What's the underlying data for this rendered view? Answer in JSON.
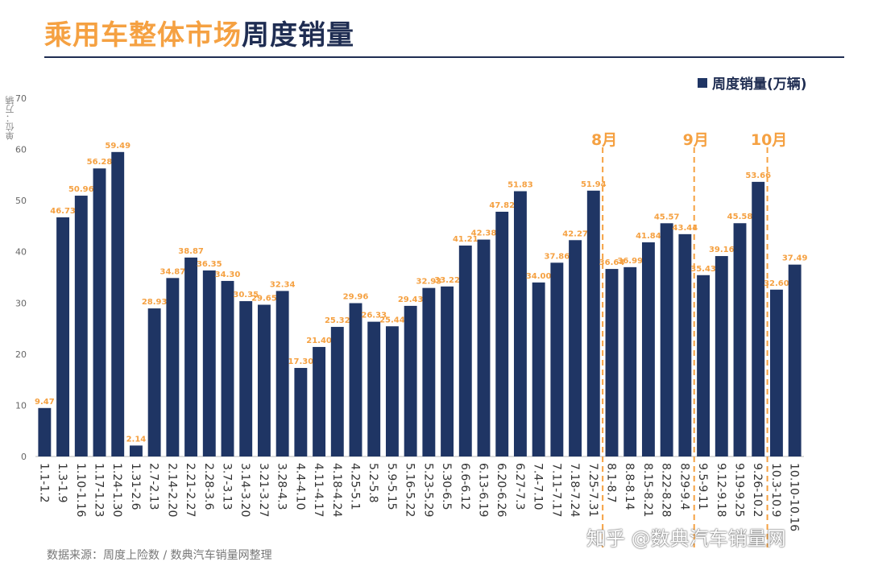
{
  "title_part1": "乘用车整体市场",
  "title_part2": "周度销量",
  "legend_label": "周度销量(万辆)",
  "unit_label": "单位：万辆",
  "source_text": "数据来源：周度上险数 / 数典汽车销量网整理",
  "watermark_text": "知乎 @数典汽车销量网",
  "colors": {
    "bar": "#1f3564",
    "label": "#f5a142",
    "title_accent": "#f5a142",
    "title_dark": "#1f2d52",
    "month_marker": "#f5a142"
  },
  "chart_data": {
    "type": "bar",
    "categories": [
      "1.1-1.2",
      "1.3-1.9",
      "1.10-1.16",
      "1.17-1.23",
      "1.24-1.30",
      "1.31-2.6",
      "2.7-2.13",
      "2.14-2.20",
      "2.21-2.27",
      "2.28-3.6",
      "3.7-3.13",
      "3.14-3.20",
      "3.21-3.27",
      "3.28-4.3",
      "4.4-4.10",
      "4.11-4.17",
      "4.18-4.24",
      "4.25-5.1",
      "5.2-5.8",
      "5.9-5.15",
      "5.16-5.22",
      "5.23-5.29",
      "5.30-6.5",
      "6.6-6.12",
      "6.13-6.19",
      "6.20-6.26",
      "6.27-7.3",
      "7.4-7.10",
      "7.11-7.17",
      "7.18-7.24",
      "7.25-7.31",
      "8.1-8.7",
      "8.8-8.14",
      "8.15-8.21",
      "8.22-8.28",
      "8.29-9.4",
      "9.5-9.11",
      "9.12-9.18",
      "9.19-9.25",
      "9.26-10.2",
      "10.3-10.9",
      "10.10-10.16"
    ],
    "values": [
      9.47,
      46.73,
      50.96,
      56.28,
      59.49,
      2.14,
      28.93,
      34.87,
      38.87,
      36.35,
      34.3,
      30.35,
      29.65,
      32.34,
      17.3,
      21.4,
      25.32,
      29.96,
      26.33,
      25.44,
      29.43,
      32.93,
      33.22,
      41.21,
      42.38,
      47.82,
      51.83,
      34.0,
      37.86,
      42.27,
      51.94,
      36.64,
      36.99,
      41.84,
      45.57,
      43.44,
      35.43,
      39.16,
      45.58,
      53.66,
      32.6,
      37.49
    ],
    "value_labels": [
      "9.47",
      "46.73",
      "50.96",
      "56.28",
      "59.49",
      "2.14",
      "28.93",
      "34.87",
      "38.87",
      "36.35",
      "34.30",
      "30.35",
      "29.65",
      "32.34",
      "17.30",
      "21.40",
      "25.32",
      "29.96",
      "26.33",
      "25.44",
      "29.43",
      "32.93",
      "33.22",
      "41.21",
      "42.38",
      "47.82",
      "51.83",
      "34.00",
      "37.86",
      "42.27",
      "51.94",
      "36.64",
      "36.99",
      "41.84",
      "45.57",
      "43.44",
      "35.43",
      "39.16",
      "45.58",
      "53.66",
      "32.60",
      "37.49"
    ],
    "ylim": [
      0,
      70
    ],
    "yticks": [
      0,
      10,
      20,
      30,
      40,
      50,
      60,
      70
    ],
    "month_markers": [
      {
        "label": "8月",
        "after_index": 30
      },
      {
        "label": "9月",
        "after_index": 35
      },
      {
        "label": "10月",
        "after_index": 39
      }
    ],
    "grid": false,
    "legend_position": "top-right"
  }
}
